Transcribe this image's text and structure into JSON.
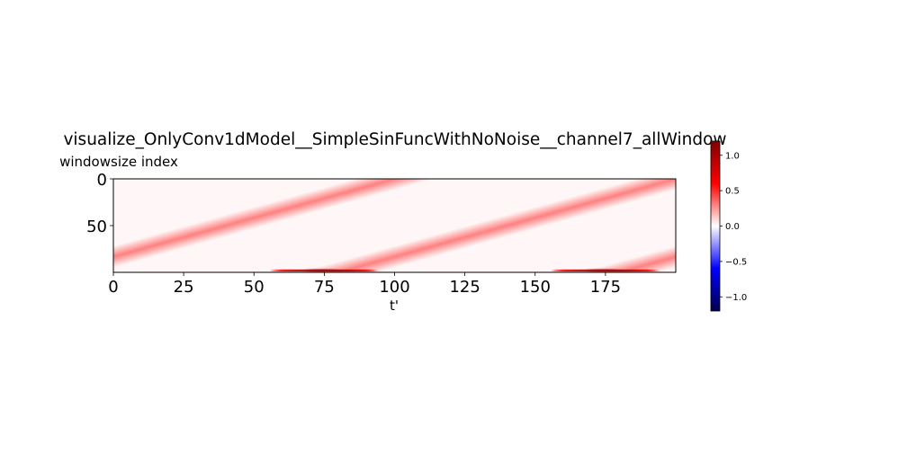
{
  "chart_data": {
    "type": "heatmap",
    "title": "visualize_OnlyConv1dModel__SimpleSinFuncWithNoNoise__channel7_allWindow",
    "xlabel": "t'",
    "ylabel": "windowsize index",
    "x_range": [
      0,
      200
    ],
    "y_range": [
      0,
      100
    ],
    "y_inverted": true,
    "x_ticks": [
      0,
      25,
      50,
      75,
      100,
      125,
      150,
      175
    ],
    "x_tick_labels": [
      "0",
      "25",
      "50",
      "75",
      "100",
      "125",
      "150",
      "175"
    ],
    "y_ticks": [
      0,
      50
    ],
    "y_tick_labels": [
      "0",
      "50"
    ],
    "colormap": "seismic",
    "colormap_stops": [
      "#00004c",
      "#0000ff",
      "#ffffff",
      "#ff0000",
      "#800000"
    ],
    "clim": [
      -1.2,
      1.2
    ],
    "colorbar_ticks": [
      1.0,
      0.5,
      0.0,
      -0.5,
      -1.0
    ],
    "colorbar_tick_labels": [
      "1.0",
      "0.5",
      "0.0",
      "−0.5",
      "−1.0"
    ],
    "background_value": 0.02,
    "bands": [
      {
        "x_start": -20,
        "y_start": 100,
        "x_end": 100,
        "y_end": 0,
        "value": 0.3
      },
      {
        "x_start": 80,
        "y_start": 100,
        "x_end": 200,
        "y_end": 0,
        "value": 0.3
      },
      {
        "x_start": 180,
        "y_start": 100,
        "x_end": 300,
        "y_end": 0,
        "value": 0.3
      }
    ],
    "bottom_spots": [
      {
        "x_center": 75,
        "y": 98,
        "x_halfwidth": 20,
        "value": 1.15
      },
      {
        "x_center": 175,
        "y": 98,
        "x_halfwidth": 20,
        "value": 1.15
      }
    ]
  }
}
